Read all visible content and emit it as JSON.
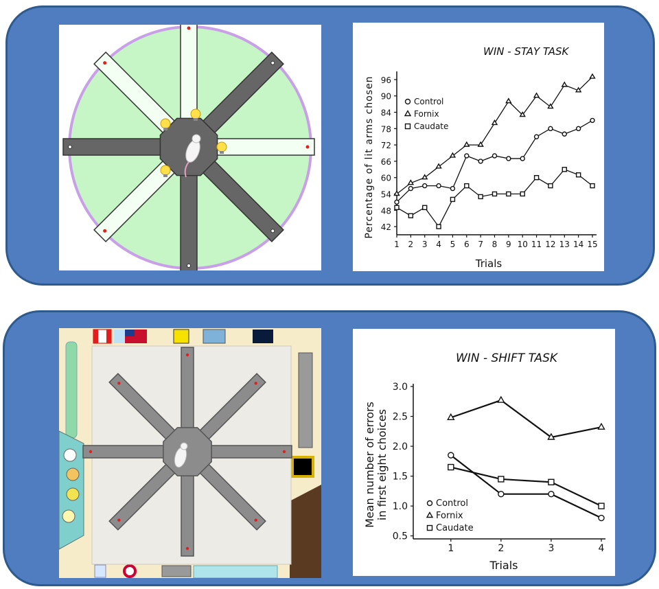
{
  "colors": {
    "panel": "#4f7dbf",
    "panel_border": "#2e5a8e",
    "maze_bg": "#c6f5c6",
    "maze_ring": "#c9a0e8",
    "arm_dark": "#666666",
    "room_bg": "#f7ecc9",
    "floor": "#ecebe5"
  },
  "chart_data": [
    {
      "type": "line",
      "title": "WIN - STAY TASK",
      "xlabel": "Trials",
      "ylabel": "Percentage of lit arms chosen",
      "x": [
        1,
        2,
        3,
        4,
        5,
        6,
        7,
        8,
        9,
        10,
        11,
        12,
        13,
        14,
        15
      ],
      "x_tick_labels": [
        "1",
        "2",
        "3",
        "4",
        "5",
        "6",
        "7",
        "8",
        "9",
        "10",
        "11",
        "12",
        "13",
        "14",
        "15"
      ],
      "y_ticks": [
        42,
        48,
        54,
        60,
        66,
        72,
        78,
        84,
        90,
        96
      ],
      "ylim": [
        39,
        98
      ],
      "grid": false,
      "legend_position": "upper-left",
      "series": [
        {
          "name": "Control",
          "marker": "circle",
          "values": [
            51,
            56,
            57,
            57,
            56,
            68,
            66,
            68,
            67,
            67,
            75,
            78,
            76,
            78,
            81
          ]
        },
        {
          "name": "Fornix",
          "marker": "triangle",
          "values": [
            54,
            58,
            60,
            64,
            68,
            72,
            72,
            80,
            88,
            83,
            90,
            86,
            94,
            92,
            97
          ]
        },
        {
          "name": "Caudate",
          "marker": "square",
          "values": [
            49,
            46,
            49,
            42,
            52,
            57,
            53,
            54,
            54,
            54,
            60,
            57,
            63,
            61,
            57
          ]
        }
      ]
    },
    {
      "type": "line",
      "title": "WIN - SHIFT TASK",
      "xlabel": "Trials",
      "ylabel": "Mean number of errors in first eight choices",
      "x": [
        1,
        2,
        3,
        4
      ],
      "x_tick_labels": [
        "1",
        "2",
        "3",
        "4"
      ],
      "y_ticks": [
        0.5,
        1.0,
        1.5,
        2.0,
        2.5,
        3.0
      ],
      "y_tick_labels": [
        "0.5",
        "1.0",
        "1.5",
        "2.0",
        "2.5",
        "3.0"
      ],
      "ylim": [
        0.45,
        3.0
      ],
      "grid": false,
      "legend_position": "lower-left",
      "series": [
        {
          "name": "Control",
          "marker": "circle",
          "values": [
            1.85,
            1.2,
            1.2,
            0.8
          ]
        },
        {
          "name": "Fornix",
          "marker": "triangle",
          "values": [
            2.48,
            2.77,
            2.15,
            2.32
          ]
        },
        {
          "name": "Caudate",
          "marker": "square",
          "values": [
            1.65,
            1.45,
            1.4,
            1.0
          ]
        }
      ]
    }
  ]
}
